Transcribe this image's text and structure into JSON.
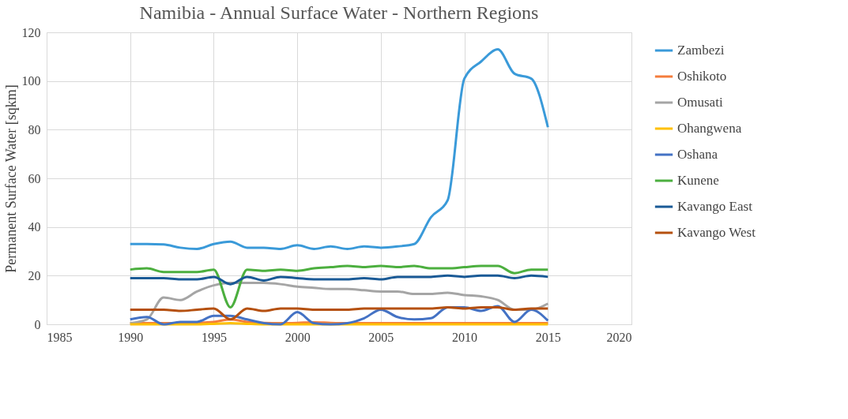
{
  "chart_data": {
    "type": "line",
    "title": "Namibia - Annual Surface Water - Northern Regions",
    "ylabel": "Permanent Surface Water [sqkm]",
    "x": [
      1990,
      1991,
      1992,
      1993,
      1994,
      1995,
      1996,
      1997,
      1998,
      1999,
      2000,
      2001,
      2002,
      2003,
      2004,
      2005,
      2006,
      2007,
      2008,
      2009,
      2010,
      2011,
      2012,
      2013,
      2014,
      2015
    ],
    "xlim": [
      1985,
      2020
    ],
    "xticks": [
      1985,
      1990,
      1995,
      2000,
      2005,
      2010,
      2015,
      2020
    ],
    "ylim": [
      0,
      120
    ],
    "yticks": [
      0,
      20,
      40,
      60,
      80,
      100,
      120
    ],
    "grid": true,
    "legend": "right",
    "marker": "none",
    "line_style": "solid",
    "series": [
      {
        "name": "Zambezi",
        "color": "#3a9ad9",
        "values": [
          33,
          33,
          32.8,
          31.5,
          31,
          33,
          34,
          31.5,
          31.5,
          31,
          32.5,
          31,
          32,
          31,
          32,
          31.5,
          32,
          33,
          44,
          51,
          101,
          108,
          113,
          103,
          101,
          81
        ]
      },
      {
        "name": "Oshikoto",
        "color": "#f47c3c",
        "values": [
          0.5,
          0.5,
          0.5,
          0.5,
          0.6,
          1,
          2,
          1,
          0.6,
          0.5,
          0.6,
          0.8,
          0.6,
          0.5,
          0.5,
          0.5,
          0.5,
          0.5,
          0.5,
          0.5,
          0.5,
          0.5,
          0.5,
          0.5,
          0.5,
          0.5
        ]
      },
      {
        "name": "Omusati",
        "color": "#a5a5a5",
        "values": [
          0.5,
          2,
          11,
          10,
          13.5,
          16,
          17,
          17,
          17,
          16.5,
          15.5,
          15,
          14.5,
          14.5,
          14,
          13.5,
          13.5,
          12.5,
          12.5,
          13,
          12,
          11.5,
          10,
          6,
          6,
          8.5
        ]
      },
      {
        "name": "Ohangwena",
        "color": "#ffc000",
        "values": [
          0,
          0,
          0,
          0,
          0,
          0.2,
          0.5,
          0.2,
          0,
          0,
          0,
          0,
          0,
          0,
          0,
          0,
          0,
          0,
          0,
          0,
          0,
          0,
          0,
          0,
          0,
          0
        ]
      },
      {
        "name": "Oshana",
        "color": "#4472c4",
        "values": [
          2,
          3,
          0,
          1,
          1,
          3.5,
          3.5,
          2,
          0.5,
          0,
          5,
          0.5,
          0,
          0.5,
          2.5,
          6,
          3,
          2,
          2.5,
          7,
          7,
          5.5,
          7.5,
          1,
          6,
          1.5
        ]
      },
      {
        "name": "Kunene",
        "color": "#4caf3f",
        "values": [
          22.5,
          23,
          21.5,
          21.5,
          21.5,
          22.5,
          7,
          22.5,
          22,
          22.5,
          22,
          23,
          23.5,
          24,
          23.5,
          24,
          23.5,
          24,
          23,
          23,
          23.5,
          24,
          24,
          21,
          22.5,
          22.5
        ]
      },
      {
        "name": "Kavango East",
        "color": "#1a5a96",
        "values": [
          19,
          19,
          19,
          18.5,
          18.5,
          19.5,
          16.5,
          19.5,
          18,
          19.5,
          19,
          18.5,
          18.5,
          18.5,
          19,
          18.5,
          19.5,
          19.5,
          19.5,
          20,
          19.5,
          20,
          20,
          19,
          20,
          19.5
        ]
      },
      {
        "name": "Kavango West",
        "color": "#b5500f",
        "values": [
          6,
          6,
          6,
          5.5,
          6,
          6.5,
          2,
          6.5,
          5.5,
          6.5,
          6.5,
          6,
          6,
          6,
          6.5,
          6.5,
          6.5,
          6.5,
          6.5,
          7,
          6.5,
          7,
          7,
          6,
          6.5,
          6.5
        ]
      }
    ]
  }
}
